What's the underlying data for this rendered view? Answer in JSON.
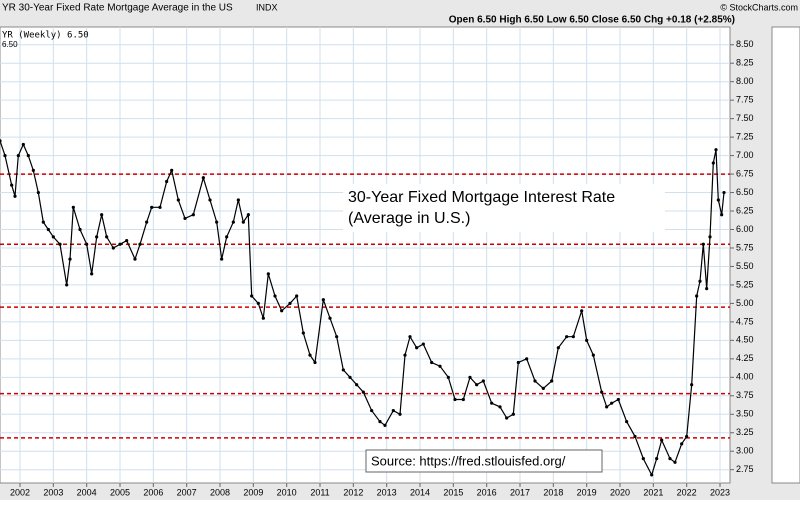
{
  "header": {
    "title": "YR 30-Year Fixed Rate Mortgage Average in the US",
    "exchange": "INDX",
    "brand": "© StockCharts.com",
    "quote": "Open 6.50  High 6.50  Low 6.50  Close 6.50  Chg +0.18 (+2.85%)"
  },
  "chart_data": {
    "type": "line",
    "legend": "YR (Weekly) 6.50",
    "legend_value": "6.50",
    "annotation": [
      "30-Year Fixed Mortgage Interest Rate",
      "(Average in U.S.)"
    ],
    "source": "Source: https://fred.stlouisfed.org/",
    "xlim": [
      2001.4,
      2023.3
    ],
    "ylim": [
      2.57,
      8.74
    ],
    "xticks": [
      2002,
      2003,
      2004,
      2005,
      2006,
      2007,
      2008,
      2009,
      2010,
      2011,
      2012,
      2013,
      2014,
      2015,
      2016,
      2017,
      2018,
      2019,
      2020,
      2021,
      2022,
      2023
    ],
    "yticks": [
      {
        "value": 2.75,
        "label": "2.75"
      },
      {
        "value": 3,
        "label": "3.00"
      },
      {
        "value": 3.25,
        "label": "3.25"
      },
      {
        "value": 3.5,
        "label": "3.50"
      },
      {
        "value": 3.75,
        "label": "3.75"
      },
      {
        "value": 4,
        "label": "4.00"
      },
      {
        "value": 4.25,
        "label": "4.25"
      },
      {
        "value": 4.5,
        "label": "4.50"
      },
      {
        "value": 4.75,
        "label": "4.75"
      },
      {
        "value": 5,
        "label": "5.00"
      },
      {
        "value": 5.25,
        "label": "5.25"
      },
      {
        "value": 5.5,
        "label": "5.50"
      },
      {
        "value": 5.75,
        "label": "5.75"
      },
      {
        "value": 6,
        "label": "6.00"
      },
      {
        "value": 6.25,
        "label": "6.25"
      },
      {
        "value": 6.5,
        "label": "6.50"
      },
      {
        "value": 6.75,
        "label": "6.75"
      },
      {
        "value": 7,
        "label": "7.00"
      },
      {
        "value": 7.25,
        "label": "7.25"
      },
      {
        "value": 7.5,
        "label": "7.50"
      },
      {
        "value": 7.75,
        "label": "7.75"
      },
      {
        "value": 8,
        "label": "8.00"
      },
      {
        "value": 8.25,
        "label": "8.25"
      },
      {
        "value": 8.5,
        "label": "8.50"
      }
    ],
    "grid": true,
    "color": "#000000",
    "reference_color": "#cc0000",
    "reference_lines": [
      6.75,
      5.8,
      4.95,
      3.78,
      3.18
    ],
    "x": [
      2001.4,
      2001.55,
      2001.75,
      2001.85,
      2001.95,
      2002.1,
      2002.25,
      2002.4,
      2002.55,
      2002.7,
      2002.85,
      2003.0,
      2003.2,
      2003.4,
      2003.5,
      2003.6,
      2003.8,
      2004.0,
      2004.15,
      2004.3,
      2004.45,
      2004.6,
      2004.8,
      2005.0,
      2005.2,
      2005.45,
      2005.6,
      2005.8,
      2005.95,
      2006.2,
      2006.4,
      2006.55,
      2006.75,
      2006.95,
      2007.2,
      2007.5,
      2007.7,
      2007.9,
      2008.05,
      2008.2,
      2008.4,
      2008.55,
      2008.7,
      2008.85,
      2008.95,
      2009.15,
      2009.3,
      2009.45,
      2009.65,
      2009.85,
      2010.1,
      2010.3,
      2010.5,
      2010.7,
      2010.85,
      2011.1,
      2011.3,
      2011.5,
      2011.7,
      2011.9,
      2012.1,
      2012.3,
      2012.55,
      2012.8,
      2012.95,
      2013.2,
      2013.4,
      2013.55,
      2013.7,
      2013.9,
      2014.1,
      2014.35,
      2014.6,
      2014.85,
      2015.05,
      2015.3,
      2015.5,
      2015.7,
      2015.9,
      2016.15,
      2016.4,
      2016.6,
      2016.8,
      2016.95,
      2017.2,
      2017.45,
      2017.7,
      2017.95,
      2018.15,
      2018.4,
      2018.6,
      2018.85,
      2019.0,
      2019.2,
      2019.45,
      2019.6,
      2019.75,
      2019.95,
      2020.2,
      2020.45,
      2020.7,
      2020.95,
      2021.1,
      2021.25,
      2021.5,
      2021.65,
      2021.85,
      2022.0,
      2022.15,
      2022.3,
      2022.4,
      2022.5,
      2022.6,
      2022.7,
      2022.8,
      2022.88,
      2022.95,
      2023.05,
      2023.12
    ],
    "values": [
      7.2,
      7.0,
      6.6,
      6.45,
      7.0,
      7.15,
      7.0,
      6.8,
      6.5,
      6.1,
      6.0,
      5.9,
      5.8,
      5.25,
      5.6,
      6.3,
      6.0,
      5.8,
      5.4,
      5.9,
      6.2,
      5.9,
      5.75,
      5.8,
      5.85,
      5.6,
      5.8,
      6.1,
      6.3,
      6.3,
      6.65,
      6.8,
      6.4,
      6.15,
      6.2,
      6.7,
      6.4,
      6.1,
      5.6,
      5.9,
      6.1,
      6.4,
      6.1,
      6.2,
      5.1,
      5.0,
      4.8,
      5.4,
      5.1,
      4.9,
      5.0,
      5.1,
      4.6,
      4.3,
      4.2,
      5.05,
      4.8,
      4.55,
      4.1,
      4.0,
      3.9,
      3.8,
      3.55,
      3.4,
      3.35,
      3.55,
      3.5,
      4.3,
      4.55,
      4.4,
      4.45,
      4.2,
      4.15,
      4.0,
      3.7,
      3.7,
      4.0,
      3.9,
      3.95,
      3.65,
      3.6,
      3.45,
      3.5,
      4.2,
      4.25,
      3.95,
      3.85,
      3.95,
      4.4,
      4.55,
      4.55,
      4.9,
      4.5,
      4.3,
      3.8,
      3.6,
      3.65,
      3.7,
      3.4,
      3.2,
      2.9,
      2.68,
      2.9,
      3.15,
      2.9,
      2.85,
      3.1,
      3.2,
      3.9,
      5.1,
      5.3,
      5.8,
      5.2,
      5.9,
      6.9,
      7.08,
      6.4,
      6.2,
      6.5
    ]
  }
}
